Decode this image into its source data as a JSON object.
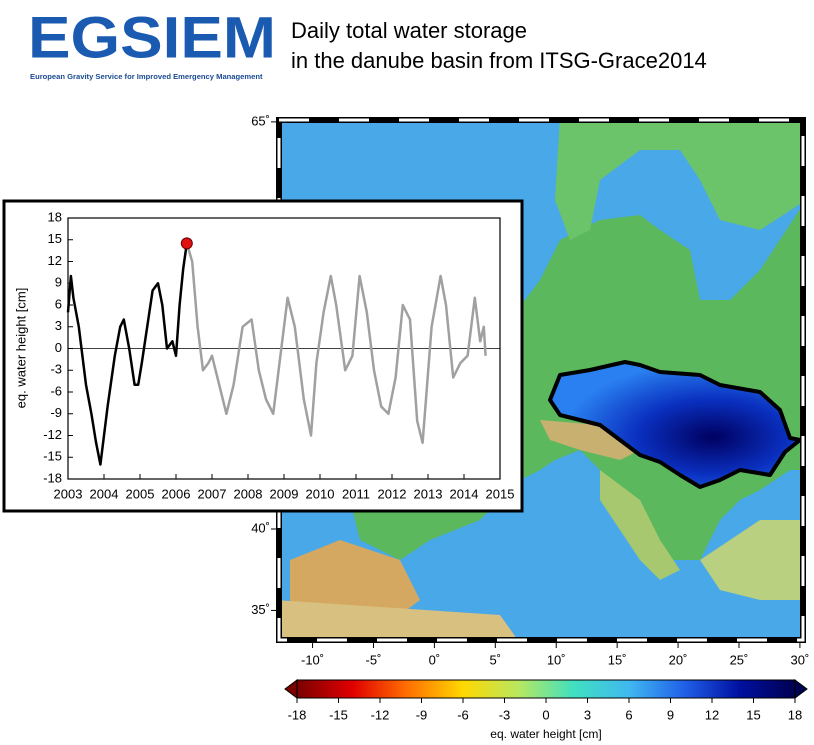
{
  "header": {
    "logo": "EGSIEM",
    "tagline": "European Gravity Service for Improved Emergency Management",
    "title_lines": [
      "Daily total water storage",
      "in the danube basin from ITSG-Grace2014"
    ]
  },
  "map": {
    "xlim": [
      -13,
      30.5
    ],
    "ylim": [
      33,
      65.3
    ],
    "xticks": [
      {
        "value": -10,
        "label": "-10˚"
      },
      {
        "value": -5,
        "label": "-5˚"
      },
      {
        "value": 0,
        "label": "0˚"
      },
      {
        "value": 5,
        "label": "5˚"
      },
      {
        "value": 10,
        "label": "10˚"
      },
      {
        "value": 15,
        "label": "15˚"
      },
      {
        "value": 20,
        "label": "20˚"
      },
      {
        "value": 25,
        "label": "25˚"
      },
      {
        "value": 30,
        "label": "30˚"
      }
    ],
    "yticks": [
      {
        "value": 35,
        "label": "35˚"
      },
      {
        "value": 40,
        "label": "40˚"
      },
      {
        "value": 65,
        "label": "65˚"
      }
    ]
  },
  "colorbar": {
    "label": "eq. water height [cm]",
    "lim": [
      -18,
      18
    ],
    "ticks": [
      -18,
      -15,
      -12,
      -9,
      -6,
      -3,
      0,
      3,
      6,
      9,
      12,
      15,
      18
    ],
    "colors": [
      "#7a0000",
      "#e00000",
      "#ff7000",
      "#ffd800",
      "#b8e860",
      "#40e0c0",
      "#40b8f0",
      "#2060e8",
      "#0010a0",
      "#000050"
    ]
  },
  "chart_data": {
    "type": "line",
    "ylabel": "eq. water height [cm]",
    "xlim": [
      2003,
      2015
    ],
    "xticks": [
      2003,
      2004,
      2005,
      2006,
      2007,
      2008,
      2009,
      2010,
      2011,
      2012,
      2013,
      2014,
      2015
    ],
    "ylim": [
      -18,
      18
    ],
    "yticks": [
      -18,
      -15,
      -12,
      -9,
      -6,
      -3,
      0,
      3,
      6,
      9,
      12,
      15,
      18
    ],
    "series": [
      {
        "color": "#000000",
        "x": [
          2003.0,
          2003.08,
          2003.15,
          2003.3,
          2003.5,
          2003.65,
          2003.78,
          2003.9,
          2004.0,
          2004.1,
          2004.3,
          2004.45,
          2004.55,
          2004.7,
          2004.85,
          2004.95,
          2005.05,
          2005.2,
          2005.35,
          2005.5,
          2005.62,
          2005.75,
          2005.9,
          2006.0,
          2006.1,
          2006.2,
          2006.3
        ],
        "values": [
          5,
          10,
          7,
          3,
          -5,
          -9,
          -13,
          -16,
          -12,
          -8,
          -1,
          3,
          4,
          0,
          -5,
          -5,
          -2,
          3,
          8,
          9,
          6,
          0,
          1,
          -1,
          6,
          11,
          14.5
        ]
      },
      {
        "color": "#a0a0a0",
        "x": [
          2006.3,
          2006.45,
          2006.6,
          2006.75,
          2006.9,
          2007.0,
          2007.2,
          2007.4,
          2007.6,
          2007.85,
          2008.1,
          2008.3,
          2008.5,
          2008.7,
          2008.9,
          2009.1,
          2009.3,
          2009.55,
          2009.75,
          2009.9,
          2010.1,
          2010.3,
          2010.45,
          2010.7,
          2010.9,
          2011.1,
          2011.3,
          2011.5,
          2011.7,
          2011.9,
          2012.1,
          2012.3,
          2012.5,
          2012.7,
          2012.85,
          2013.1,
          2013.35,
          2013.5,
          2013.7,
          2013.9,
          2014.1,
          2014.3,
          2014.45,
          2014.55,
          2014.6
        ],
        "values": [
          14.5,
          12,
          3,
          -3,
          -2,
          -1,
          -5,
          -9,
          -5,
          3,
          4,
          -3,
          -7,
          -9,
          -1,
          7,
          3,
          -7,
          -12,
          -2,
          5,
          10,
          6,
          -3,
          -1,
          10,
          5,
          -3,
          -8,
          -9,
          -4,
          6,
          4,
          -10,
          -13,
          3,
          10,
          6,
          -4,
          -2,
          -1,
          7,
          1,
          3,
          -1
        ]
      }
    ],
    "highlight": {
      "x": 2006.3,
      "y": 14.5,
      "color": "#e01010"
    }
  }
}
